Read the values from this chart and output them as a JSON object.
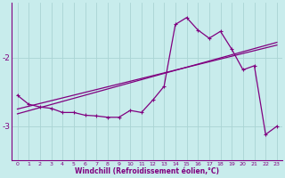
{
  "background_color": "#c8ecec",
  "grid_color": "#aad4d4",
  "line_color": "#800080",
  "xlabel": "Windchill (Refroidissement éolien,°C)",
  "xlabel_color": "#800080",
  "ylabel_ticks": [
    -3,
    -2
  ],
  "xlim": [
    -0.5,
    23.5
  ],
  "ylim": [
    -3.5,
    -1.2
  ],
  "trend1_x": [
    0,
    23
  ],
  "trend1_y": [
    -2.75,
    -1.82
  ],
  "trend2_x": [
    0,
    23
  ],
  "trend2_y": [
    -2.82,
    -1.78
  ],
  "data_x": [
    0,
    1,
    2,
    3,
    4,
    5,
    6,
    7,
    8,
    9,
    10,
    11,
    12,
    13,
    14,
    15,
    16,
    17,
    18,
    19,
    20,
    21,
    22,
    23
  ],
  "data_y": [
    -2.55,
    -2.68,
    -2.72,
    -2.74,
    -2.8,
    -2.8,
    -2.84,
    -2.85,
    -2.87,
    -2.87,
    -2.77,
    -2.8,
    -2.62,
    -2.42,
    -1.52,
    -1.42,
    -1.6,
    -1.72,
    -1.62,
    -1.88,
    -2.18,
    -2.12,
    -3.12,
    -3.0
  ],
  "marker_size": 2.5,
  "linewidth": 0.9
}
